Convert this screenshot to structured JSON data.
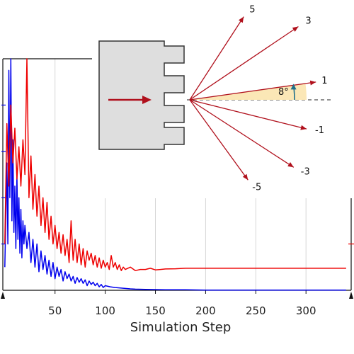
{
  "chart_data": {
    "type": "line",
    "title": "",
    "xlabel": "Simulation Step",
    "ylabel": "",
    "xlim": [
      -2,
      345
    ],
    "ylim": [
      0,
      1
    ],
    "x_ticks": [
      50,
      100,
      150,
      200,
      250,
      300
    ],
    "grid": true,
    "legend": "none",
    "series": [
      {
        "color": "#0000ee",
        "x": [
          0,
          2,
          3,
          4,
          5,
          6,
          7,
          8,
          9,
          10,
          11,
          12,
          13,
          14,
          15,
          16,
          17,
          18,
          19,
          20,
          22,
          24,
          26,
          28,
          30,
          32,
          34,
          36,
          38,
          40,
          42,
          44,
          46,
          48,
          50,
          52,
          54,
          56,
          58,
          60,
          62,
          64,
          66,
          68,
          70,
          72,
          74,
          76,
          78,
          80,
          82,
          84,
          86,
          88,
          90,
          92,
          94,
          96,
          98,
          100,
          105,
          110,
          115,
          120,
          125,
          130,
          140,
          150,
          160,
          170,
          180,
          200,
          220,
          250,
          280,
          310,
          340
        ],
        "y": [
          0.1,
          0.55,
          0.2,
          0.95,
          0.4,
          1.0,
          0.3,
          0.65,
          0.25,
          0.45,
          0.18,
          0.5,
          0.22,
          0.4,
          0.16,
          0.35,
          0.14,
          0.3,
          0.2,
          0.28,
          0.18,
          0.25,
          0.12,
          0.22,
          0.1,
          0.2,
          0.08,
          0.17,
          0.09,
          0.15,
          0.07,
          0.13,
          0.06,
          0.12,
          0.05,
          0.1,
          0.06,
          0.09,
          0.04,
          0.08,
          0.05,
          0.07,
          0.04,
          0.06,
          0.03,
          0.055,
          0.035,
          0.05,
          0.03,
          0.045,
          0.02,
          0.04,
          0.025,
          0.035,
          0.02,
          0.03,
          0.015,
          0.025,
          0.012,
          0.02,
          0.015,
          0.012,
          0.01,
          0.008,
          0.006,
          0.005,
          0.004,
          0.003,
          0.002,
          0.002,
          0.002,
          0.001,
          0.001,
          0.001,
          0.001,
          0.001,
          0.001
        ]
      },
      {
        "color": "#ee0000",
        "x": [
          0,
          2,
          4,
          6,
          8,
          10,
          12,
          14,
          16,
          18,
          20,
          22,
          24,
          26,
          28,
          30,
          32,
          34,
          36,
          38,
          40,
          42,
          44,
          46,
          48,
          50,
          52,
          54,
          56,
          58,
          60,
          62,
          64,
          66,
          68,
          70,
          72,
          74,
          76,
          78,
          80,
          82,
          84,
          86,
          88,
          90,
          92,
          94,
          96,
          98,
          100,
          102,
          104,
          106,
          108,
          110,
          112,
          114,
          116,
          118,
          120,
          125,
          130,
          135,
          140,
          145,
          150,
          155,
          160,
          170,
          180,
          190,
          200,
          220,
          250,
          280,
          310,
          340
        ],
        "y": [
          0.2,
          0.72,
          0.45,
          0.8,
          0.55,
          0.7,
          0.48,
          0.62,
          0.45,
          0.65,
          0.5,
          1.0,
          0.4,
          0.58,
          0.35,
          0.5,
          0.32,
          0.45,
          0.28,
          0.4,
          0.25,
          0.38,
          0.22,
          0.32,
          0.2,
          0.28,
          0.18,
          0.25,
          0.16,
          0.24,
          0.15,
          0.22,
          0.12,
          0.3,
          0.13,
          0.22,
          0.12,
          0.2,
          0.11,
          0.18,
          0.1,
          0.17,
          0.13,
          0.16,
          0.11,
          0.15,
          0.1,
          0.14,
          0.095,
          0.13,
          0.1,
          0.12,
          0.09,
          0.15,
          0.1,
          0.12,
          0.09,
          0.11,
          0.085,
          0.1,
          0.09,
          0.1,
          0.085,
          0.09,
          0.09,
          0.095,
          0.088,
          0.09,
          0.092,
          0.093,
          0.095,
          0.095,
          0.095,
          0.095,
          0.095,
          0.095,
          0.095,
          0.095
        ]
      }
    ],
    "inset": {
      "type": "diagram",
      "diffraction_orders": [
        "5",
        "3",
        "1",
        "-1",
        "-3",
        "-5"
      ],
      "angle_label": "8°",
      "order_angles_deg": [
        57,
        34,
        8,
        -14,
        -33,
        -54
      ],
      "colors": {
        "grating_fill": "#dedede",
        "arrow": "#b0101c",
        "angle_fill": "#fbe7b6"
      }
    }
  }
}
